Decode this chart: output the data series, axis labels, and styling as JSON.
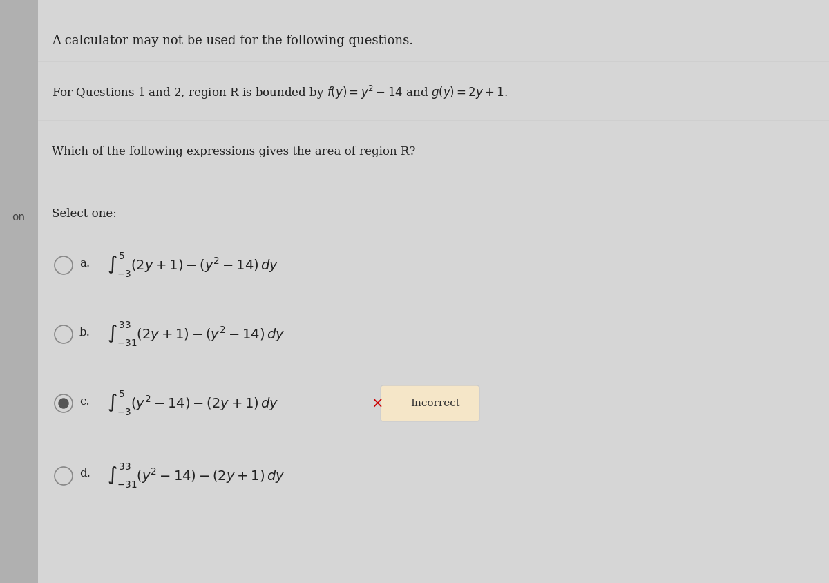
{
  "bg_color": "#d6d6d6",
  "panel_color": "#e8e8e8",
  "left_bar_color": "#b0b0b0",
  "title_line1": "A calculator may not be used for the following questions.",
  "title_line2": "For Questions 1 and 2, region R is bounded by $f(y)=y^2-14$ and $g(y)=2y+1$.",
  "question": "Which of the following expressions gives the area of region R?",
  "select_one": "Select one:",
  "on_label": "on",
  "option_a_label": "a.",
  "option_b_label": "b.",
  "option_c_label": "c.",
  "option_d_label": "d.",
  "option_a": "$\\int_{-3}^{5}(2y+1)-(y^2-14)\\,dy$",
  "option_b": "$\\int_{-31}^{33}(2y+1)-(y^2-14)\\,dy$",
  "option_c": "$\\int_{-3}^{5}(y^2-14)-(2y+1)\\,dy$",
  "option_d": "$\\int_{-31}^{33}(y^2-14)-(2y+1)\\,dy$",
  "incorrect_label": "Incorrect",
  "incorrect_bg": "#f5e6c8",
  "incorrect_x_color": "#cc0000",
  "selected_option": "c",
  "font_size_title": 13,
  "font_size_body": 12,
  "font_size_math": 14
}
